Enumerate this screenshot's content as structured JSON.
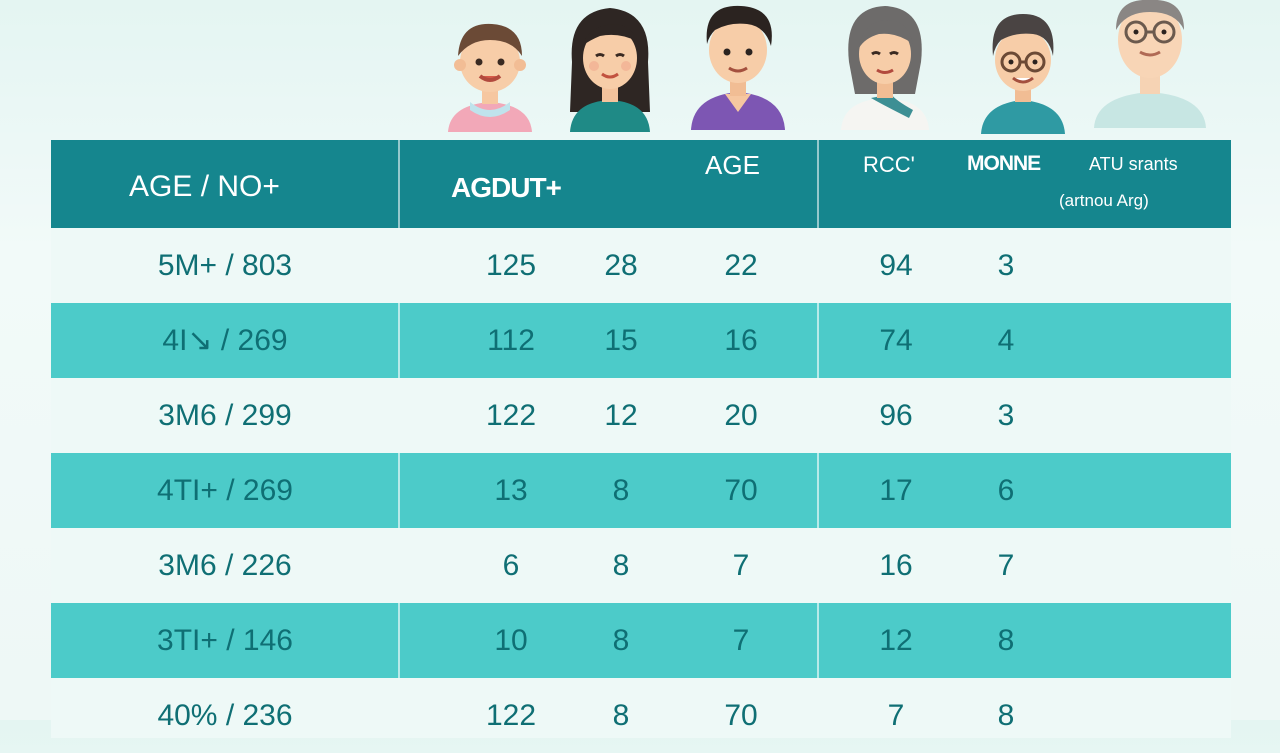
{
  "chart_data": {
    "type": "table",
    "columns": [
      "AGE / NO+",
      "AGDUT+",
      "AGE",
      "RCC'",
      "MONNE",
      "ATU srants (artnou Arg)"
    ],
    "header": {
      "col0": "AGE / NO+",
      "col1": "AGDUT+",
      "col2": "AGE",
      "col3": "RCC'",
      "col4": "MONNE",
      "col5_line1": "ATU srants",
      "col5_line2": "(artnou Arg)"
    },
    "rows": [
      [
        "5M+ / 803",
        "125",
        "28",
        "22",
        "94",
        "3"
      ],
      [
        "4I↘ / 269",
        "112",
        "15",
        "16",
        "74",
        "4"
      ],
      [
        "3M6 / 299",
        "122",
        "12",
        "20",
        "96",
        "3"
      ],
      [
        "4TI+ / 269",
        "13",
        "8",
        "70",
        "17",
        "6"
      ],
      [
        "3M6 / 226",
        "6",
        "8",
        "7",
        "16",
        "7"
      ],
      [
        "3TI+ / 146",
        "10",
        "8",
        "7",
        "12",
        "8"
      ],
      [
        "40% / 236",
        "122",
        "8",
        "70",
        "7",
        "8"
      ]
    ]
  },
  "colors": {
    "header": "#15868e",
    "row_shaded": "#4ccbc9",
    "row_light": "#eef9f7",
    "text": "#0f6f74"
  },
  "avatars": [
    "child-boy",
    "girl",
    "young-man",
    "woman",
    "elderly-man-glasses",
    "elderly-man-glasses-light"
  ]
}
